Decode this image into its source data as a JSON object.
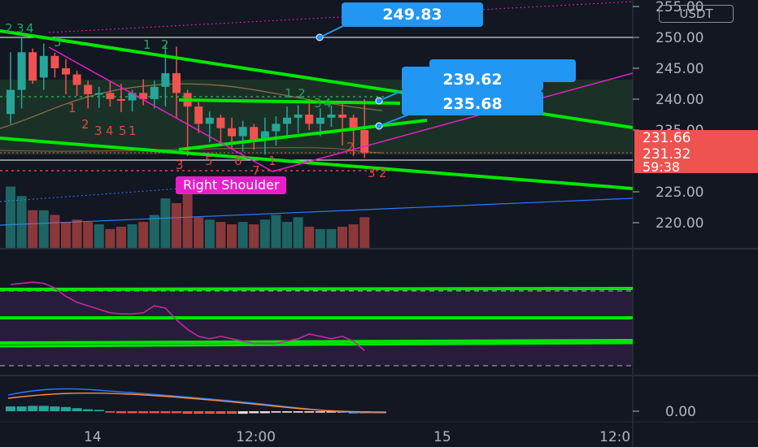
{
  "price_axis": {
    "currency": "USDT",
    "ticks": [
      {
        "value": 255,
        "label": "255.00"
      },
      {
        "value": 250,
        "label": "250.00"
      },
      {
        "value": 245,
        "label": "245.00"
      },
      {
        "value": 240,
        "label": "240.00"
      },
      {
        "value": 235,
        "label": "235.00"
      },
      {
        "value": 225,
        "label": "225.00"
      },
      {
        "value": 220,
        "label": "220.00"
      }
    ],
    "last_price": {
      "price": "231.66",
      "close": "231.32",
      "countdown": "59:38"
    }
  },
  "time_axis": {
    "labels": [
      "14",
      "12:00",
      "15",
      "12:0"
    ]
  },
  "macd_axis": {
    "zero_label": "0.00"
  },
  "callouts": [
    {
      "label": "249.83",
      "color": "#2196f3"
    },
    {
      "label": "239.62",
      "color": "#2196f3"
    },
    {
      "label": "235.68",
      "color": "#2196f3"
    }
  ],
  "annotations": {
    "pattern_label": "Right Shoulder"
  },
  "colors": {
    "up": "#26a69a",
    "down": "#ef5350",
    "trendline": "#00e600",
    "magenta": "#e91ec9",
    "callout": "#2196f3"
  },
  "chart_data": {
    "type": "candlestick",
    "timeframe_note": "hourly candles",
    "ohlc": [
      {
        "o": 237.6,
        "h": 247.6,
        "l": 236.0,
        "c": 241.5
      },
      {
        "o": 241.5,
        "h": 250.0,
        "l": 238.5,
        "c": 247.6
      },
      {
        "o": 247.6,
        "h": 248.2,
        "l": 242.5,
        "c": 243.0
      },
      {
        "o": 243.5,
        "h": 249.0,
        "l": 241.5,
        "c": 247.0
      },
      {
        "o": 247.0,
        "h": 247.5,
        "l": 243.5,
        "c": 245.0
      },
      {
        "o": 245.0,
        "h": 246.5,
        "l": 240.8,
        "c": 244.0
      },
      {
        "o": 244.0,
        "h": 244.6,
        "l": 240.5,
        "c": 242.3
      },
      {
        "o": 242.3,
        "h": 243.0,
        "l": 238.5,
        "c": 240.8
      },
      {
        "o": 240.8,
        "h": 242.0,
        "l": 238.6,
        "c": 241.0
      },
      {
        "o": 241.0,
        "h": 242.8,
        "l": 238.8,
        "c": 240.0
      },
      {
        "o": 240.0,
        "h": 242.5,
        "l": 237.9,
        "c": 239.8
      },
      {
        "o": 239.8,
        "h": 241.5,
        "l": 238.0,
        "c": 241.0
      },
      {
        "o": 241.0,
        "h": 243.2,
        "l": 239.0,
        "c": 240.0
      },
      {
        "o": 240.0,
        "h": 243.0,
        "l": 238.5,
        "c": 242.0
      },
      {
        "o": 242.0,
        "h": 248.7,
        "l": 238.8,
        "c": 244.2
      },
      {
        "o": 244.2,
        "h": 248.5,
        "l": 237.0,
        "c": 241.0
      },
      {
        "o": 241.0,
        "h": 241.5,
        "l": 230.8,
        "c": 238.8
      },
      {
        "o": 238.8,
        "h": 239.5,
        "l": 234.5,
        "c": 236.0
      },
      {
        "o": 236.0,
        "h": 238.0,
        "l": 233.0,
        "c": 237.0
      },
      {
        "o": 237.0,
        "h": 237.5,
        "l": 233.0,
        "c": 235.3
      },
      {
        "o": 235.3,
        "h": 237.0,
        "l": 232.0,
        "c": 234.0
      },
      {
        "o": 234.0,
        "h": 236.5,
        "l": 231.5,
        "c": 235.5
      },
      {
        "o": 235.5,
        "h": 236.0,
        "l": 231.8,
        "c": 233.5
      },
      {
        "o": 233.5,
        "h": 237.0,
        "l": 231.0,
        "c": 234.8
      },
      {
        "o": 234.8,
        "h": 237.2,
        "l": 232.5,
        "c": 236.0
      },
      {
        "o": 236.0,
        "h": 238.8,
        "l": 233.8,
        "c": 237.0
      },
      {
        "o": 237.0,
        "h": 239.0,
        "l": 234.5,
        "c": 237.5
      },
      {
        "o": 237.5,
        "h": 240.0,
        "l": 235.0,
        "c": 236.0
      },
      {
        "o": 236.0,
        "h": 238.5,
        "l": 234.0,
        "c": 237.0
      },
      {
        "o": 237.0,
        "h": 239.0,
        "l": 235.5,
        "c": 237.5
      },
      {
        "o": 237.5,
        "h": 239.5,
        "l": 232.5,
        "c": 237.0
      },
      {
        "o": 237.0,
        "h": 237.5,
        "l": 230.8,
        "c": 235.0
      },
      {
        "o": 235.0,
        "h": 240.0,
        "l": 230.5,
        "c": 231.32
      }
    ],
    "volume": [
      26,
      22,
      16,
      16,
      14,
      11,
      12,
      11,
      10,
      8,
      9,
      10,
      11,
      14,
      21,
      19,
      26,
      13,
      12,
      11,
      10,
      11,
      10,
      12,
      14,
      11,
      13,
      9,
      8,
      8,
      9,
      10,
      13
    ],
    "rsi": [
      62,
      63,
      64,
      63,
      59,
      52,
      47,
      44,
      41,
      38,
      37,
      37,
      38,
      44,
      42,
      32,
      24,
      18,
      16,
      18,
      16,
      14,
      12,
      12,
      12,
      14,
      16,
      20,
      18,
      16,
      18,
      14,
      6
    ],
    "macd_hist": [
      0.35,
      0.35,
      0.4,
      0.4,
      0.35,
      0.3,
      0.2,
      0.1,
      0.05,
      -0.05,
      -0.1,
      -0.1,
      -0.1,
      -0.1,
      -0.1,
      -0.1,
      -0.15,
      -0.15,
      -0.15,
      -0.15,
      -0.15,
      -0.15,
      -0.1,
      -0.1,
      -0.05,
      -0.05,
      -0.05,
      -0.05,
      -0.05,
      -0.05,
      -0.05,
      -0.1,
      -0.1
    ],
    "sequential_counts": {
      "green": [
        "2",
        "3",
        "4",
        "5",
        "1",
        "2",
        "1",
        "2",
        "3",
        "4"
      ],
      "red": [
        "1",
        "2",
        "3",
        "4",
        "5",
        "1",
        "3",
        "5",
        "6",
        "7",
        "1",
        "2",
        "3",
        "2"
      ]
    }
  }
}
